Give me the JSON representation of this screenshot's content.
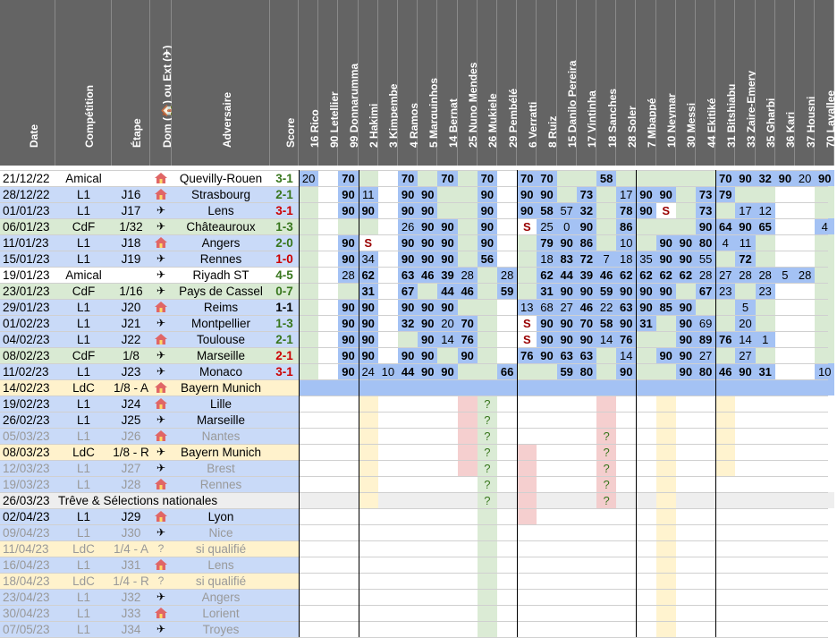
{
  "headers": {
    "date": "Date",
    "competition": "Compétition",
    "stage": "Étape",
    "home_away": "Dom (🏠) ou Ext (✈)",
    "opponent": "Adversaire",
    "score": "Score"
  },
  "players": [
    {
      "num": "16",
      "name": "Rico"
    },
    {
      "num": "90",
      "name": "Letellier"
    },
    {
      "num": "99",
      "name": "Donnarumma"
    },
    {
      "num": "2",
      "name": "Hakimi"
    },
    {
      "num": "3",
      "name": "Kimpembe"
    },
    {
      "num": "4",
      "name": "Ramos"
    },
    {
      "num": "5",
      "name": "Marquinhos"
    },
    {
      "num": "14",
      "name": "Bernat"
    },
    {
      "num": "25",
      "name": "Nuno Mendes"
    },
    {
      "num": "26",
      "name": "Mukiele"
    },
    {
      "num": "29",
      "name": "Pembélé"
    },
    {
      "num": "6",
      "name": "Verratti"
    },
    {
      "num": "8",
      "name": "Ruiz"
    },
    {
      "num": "15",
      "name": "Danilo Pereira"
    },
    {
      "num": "17",
      "name": "Vintinha"
    },
    {
      "num": "18",
      "name": "Sanches"
    },
    {
      "num": "28",
      "name": "Soler"
    },
    {
      "num": "7",
      "name": "Mbappé"
    },
    {
      "num": "10",
      "name": "Neymar"
    },
    {
      "num": "30",
      "name": "Messi"
    },
    {
      "num": "44",
      "name": "Ekitiké"
    },
    {
      "num": "31",
      "name": "Bitshiabu"
    },
    {
      "num": "33",
      "name": "Zaire-Emery"
    },
    {
      "num": "35",
      "name": "Gharbi"
    },
    {
      "num": "36",
      "name": "Kari"
    },
    {
      "num": "37",
      "name": "Housni"
    },
    {
      "num": "70",
      "name": "Lavallee"
    }
  ],
  "colors": {
    "header_bg": "#646464",
    "amical": "#ffffff",
    "l1": "#c9daf8",
    "cdf": "#d9ead3",
    "ldc": "#fff2cc",
    "break": "#eeeeee",
    "played": "#a4c2f4",
    "available": "#d9ead3",
    "absent_bg": "#ffffff",
    "suspended_bg": "#f4cccc",
    "doubt_bg": "#fff2cc",
    "score_win": "#38761d",
    "score_loss": "#cc0000",
    "score_draw": "#000000",
    "yellow_text": "#ffff00",
    "green_text": "#38761d",
    "red_text": "#990000",
    "purple_text": "#9900ff",
    "dim_text": "#999999"
  },
  "matches": [
    {
      "date": "21/12/22",
      "comp": "Amical",
      "stage": "",
      "loc": "home",
      "opp": "Quevilly-Rouen",
      "score": "3-1",
      "res": "W",
      "cells": [
        "20",
        "",
        "70",
        "",
        "",
        "70",
        "",
        "70",
        "",
        "70",
        "",
        "70",
        "70",
        "",
        "",
        "58",
        "",
        "",
        "",
        "",
        "",
        "70",
        "90",
        "32",
        "90",
        "20",
        "90"
      ]
    },
    {
      "date": "28/12/22",
      "comp": "L1",
      "stage": "J16",
      "loc": "home",
      "opp": "Strasbourg",
      "score": "2-1",
      "res": "W",
      "cells": [
        "",
        "",
        "90",
        "11",
        "",
        "90",
        "90",
        "",
        "",
        "90",
        "",
        "90",
        "90",
        "",
        "73",
        "",
        "17",
        "90",
        "90",
        "",
        "73",
        "79",
        "",
        "",
        "",
        "",
        ""
      ]
    },
    {
      "date": "01/01/23",
      "comp": "L1",
      "stage": "J17",
      "loc": "away",
      "opp": "Lens",
      "score": "3-1",
      "res": "L",
      "cells": [
        "",
        "",
        "90",
        "90",
        "",
        "90",
        "90",
        "",
        "",
        "90",
        "",
        "90",
        "58",
        "57",
        "32",
        "",
        "78",
        "90",
        "S",
        "",
        "73",
        "",
        "17",
        "12",
        "",
        "",
        ""
      ]
    },
    {
      "date": "06/01/23",
      "comp": "CdF",
      "stage": "1/32",
      "loc": "away",
      "opp": "Châteauroux",
      "score": "1-3",
      "res": "W",
      "cells": [
        "",
        "",
        "",
        "",
        "",
        "26",
        "90",
        "90",
        "",
        "90",
        "",
        "S",
        "25",
        "0",
        "90",
        "",
        "86",
        "",
        "",
        "",
        "90",
        "64",
        "90",
        "65",
        "",
        "",
        "4"
      ]
    },
    {
      "date": "11/01/23",
      "comp": "L1",
      "stage": "J18",
      "loc": "home",
      "opp": "Angers",
      "score": "2-0",
      "res": "W",
      "cells": [
        "",
        "",
        "90",
        "S",
        "",
        "90",
        "90",
        "90",
        "",
        "90",
        "",
        "",
        "79",
        "90",
        "86",
        "",
        "10",
        "",
        "90",
        "90",
        "80",
        "4",
        "11",
        "",
        "",
        "",
        ""
      ]
    },
    {
      "date": "15/01/23",
      "comp": "L1",
      "stage": "J19",
      "loc": "away",
      "opp": "Rennes",
      "score": "1-0",
      "res": "L",
      "cells": [
        "",
        "",
        "90",
        "34",
        "",
        "90",
        "90",
        "90",
        "",
        "56",
        "",
        "",
        "18",
        "83",
        "72",
        "7",
        "18",
        "35",
        "90",
        "90",
        "55",
        "",
        "72",
        "",
        "",
        "",
        ""
      ]
    },
    {
      "date": "19/01/23",
      "comp": "Amical",
      "stage": "",
      "loc": "away",
      "opp": "Riyadh ST",
      "score": "4-5",
      "res": "W",
      "cells": [
        "",
        "",
        "28",
        "62",
        "",
        "63",
        "46",
        "39",
        "28",
        "",
        "28",
        "",
        "62",
        "44",
        "39",
        "46",
        "62",
        "62",
        "62",
        "62",
        "28",
        "27",
        "28",
        "28",
        "5",
        "28",
        ""
      ]
    },
    {
      "date": "23/01/23",
      "comp": "CdF",
      "stage": "1/16",
      "loc": "away",
      "opp": "Pays de Cassel",
      "score": "0-7",
      "res": "W",
      "cells": [
        "",
        "",
        "",
        "31",
        "",
        "67",
        "",
        "44",
        "46",
        "",
        "59",
        "",
        "31",
        "90",
        "90",
        "59",
        "90",
        "90",
        "90",
        "",
        "67",
        "23",
        "",
        "23",
        "",
        "",
        ""
      ]
    },
    {
      "date": "29/01/23",
      "comp": "L1",
      "stage": "J20",
      "loc": "home",
      "opp": "Reims",
      "score": "1-1",
      "res": "D",
      "cells": [
        "",
        "",
        "90",
        "90",
        "",
        "90",
        "90",
        "90",
        "",
        "",
        "",
        "13",
        "68",
        "27",
        "46",
        "22",
        "63",
        "90",
        "85",
        "90",
        "",
        "",
        "5",
        "",
        "",
        "",
        ""
      ]
    },
    {
      "date": "01/02/23",
      "comp": "L1",
      "stage": "J21",
      "loc": "away",
      "opp": "Montpellier",
      "score": "1-3",
      "res": "W",
      "cells": [
        "",
        "",
        "90",
        "90",
        "",
        "32",
        "90",
        "20",
        "70",
        "",
        "",
        "S",
        "90",
        "90",
        "70",
        "58",
        "90",
        "31",
        "",
        "90",
        "69",
        "",
        "20",
        "",
        "",
        "",
        ""
      ]
    },
    {
      "date": "04/02/23",
      "comp": "L1",
      "stage": "J22",
      "loc": "home",
      "opp": "Toulouse",
      "score": "2-1",
      "res": "W",
      "cells": [
        "",
        "",
        "90",
        "90",
        "",
        "",
        "90",
        "14",
        "76",
        "",
        "",
        "S",
        "90",
        "90",
        "90",
        "14",
        "76",
        "",
        "",
        "90",
        "89",
        "76",
        "14",
        "1",
        "",
        "",
        ""
      ]
    },
    {
      "date": "08/02/23",
      "comp": "CdF",
      "stage": "1/8",
      "loc": "away",
      "opp": "Marseille",
      "score": "2-1",
      "res": "L",
      "cells": [
        "",
        "",
        "90",
        "90",
        "",
        "90",
        "90",
        "",
        "90",
        "",
        "",
        "76",
        "90",
        "63",
        "63",
        "",
        "14",
        "",
        "90",
        "90",
        "27",
        "",
        "27",
        "",
        "",
        "",
        ""
      ]
    },
    {
      "date": "11/02/23",
      "comp": "L1",
      "stage": "J23",
      "loc": "away",
      "opp": "Monaco",
      "score": "3-1",
      "res": "L",
      "cells": [
        "",
        "",
        "90",
        "24",
        "10",
        "44",
        "90",
        "90",
        "",
        "",
        "66",
        "",
        "",
        "59",
        "80",
        "",
        "90",
        "",
        "",
        "90",
        "80",
        "46",
        "90",
        "31",
        "",
        "",
        "10"
      ]
    },
    {
      "date": "14/02/23",
      "comp": "LdC",
      "stage": "1/8 - A",
      "loc": "home",
      "opp": "Bayern Munich",
      "score": "",
      "res": "",
      "cells": [
        "",
        "",
        "",
        "",
        "",
        "",
        "",
        "",
        "",
        "",
        "",
        "",
        "",
        "",
        "",
        "",
        "",
        "",
        "",
        "",
        "",
        "",
        "",
        "",
        "",
        "",
        ""
      ]
    },
    {
      "date": "19/02/23",
      "comp": "L1",
      "stage": "J24",
      "loc": "home",
      "opp": "Lille",
      "score": "",
      "res": "",
      "cells": [
        "",
        "",
        "",
        "",
        "",
        "",
        "",
        "",
        "",
        "?",
        "",
        "",
        "",
        "",
        "",
        "",
        "",
        "",
        "",
        "",
        "",
        "",
        "",
        "",
        "",
        "",
        ""
      ]
    },
    {
      "date": "26/02/23",
      "comp": "L1",
      "stage": "J25",
      "loc": "away",
      "opp": "Marseille",
      "score": "",
      "res": "",
      "cells": [
        "",
        "",
        "",
        "",
        "",
        "",
        "",
        "",
        "",
        "?",
        "",
        "",
        "",
        "",
        "",
        "",
        "",
        "",
        "",
        "",
        "",
        "",
        "",
        "",
        "",
        "",
        ""
      ]
    },
    {
      "date": "05/03/23",
      "comp": "L1",
      "stage": "J26",
      "loc": "home",
      "opp": "Nantes",
      "score": "",
      "res": "",
      "cells": [
        "",
        "",
        "",
        "",
        "",
        "",
        "",
        "",
        "",
        "?",
        "",
        "",
        "",
        "",
        "",
        "?",
        "",
        "",
        "",
        "",
        "",
        "",
        "",
        "",
        "",
        "",
        ""
      ]
    },
    {
      "date": "08/03/23",
      "comp": "LdC",
      "stage": "1/8 - R",
      "loc": "away",
      "opp": "Bayern Munich",
      "score": "",
      "res": "",
      "cells": [
        "",
        "",
        "",
        "",
        "",
        "",
        "",
        "",
        "",
        "?",
        "",
        "",
        "",
        "",
        "",
        "?",
        "",
        "",
        "",
        "",
        "",
        "",
        "",
        "",
        "",
        "",
        ""
      ]
    },
    {
      "date": "12/03/23",
      "comp": "L1",
      "stage": "J27",
      "loc": "away",
      "opp": "Brest",
      "score": "",
      "res": "",
      "cells": [
        "",
        "",
        "",
        "",
        "",
        "",
        "",
        "",
        "",
        "?",
        "",
        "",
        "",
        "",
        "",
        "?",
        "",
        "",
        "",
        "",
        "",
        "",
        "",
        "",
        "",
        "",
        ""
      ]
    },
    {
      "date": "19/03/23",
      "comp": "L1",
      "stage": "J28",
      "loc": "home",
      "opp": "Rennes",
      "score": "",
      "res": "",
      "cells": [
        "",
        "",
        "",
        "",
        "",
        "",
        "",
        "",
        "",
        "?",
        "",
        "",
        "",
        "",
        "",
        "?",
        "",
        "",
        "",
        "",
        "",
        "",
        "",
        "",
        "",
        "",
        ""
      ]
    },
    {
      "date": "26/03/23",
      "comp": "break",
      "stage": "",
      "loc": "",
      "opp": "Trêve & Sélections nationales",
      "score": "",
      "res": "",
      "cells": [
        "",
        "",
        "",
        "",
        "",
        "",
        "",
        "",
        "",
        "?",
        "",
        "",
        "",
        "",
        "",
        "?",
        "",
        "",
        "",
        "",
        "",
        "",
        "",
        "",
        "",
        "",
        ""
      ]
    },
    {
      "date": "02/04/23",
      "comp": "L1",
      "stage": "J29",
      "loc": "home",
      "opp": "Lyon",
      "score": "",
      "res": "",
      "cells": [
        "",
        "",
        "",
        "",
        "",
        "",
        "",
        "",
        "",
        "",
        "",
        "",
        "",
        "",
        "",
        "",
        "",
        "",
        "",
        "",
        "",
        "",
        "",
        "",
        "",
        "",
        ""
      ]
    },
    {
      "date": "09/04/23",
      "comp": "L1",
      "stage": "J30",
      "loc": "away",
      "opp": "Nice",
      "score": "",
      "res": "",
      "cells": [
        "",
        "",
        "",
        "",
        "",
        "",
        "",
        "",
        "",
        "",
        "",
        "",
        "",
        "",
        "",
        "",
        "",
        "",
        "",
        "",
        "",
        "",
        "",
        "",
        "",
        "",
        ""
      ]
    },
    {
      "date": "11/04/23",
      "comp": "LdC",
      "stage": "1/4 - A",
      "loc": "unknown",
      "opp": "si qualifié",
      "score": "",
      "res": "",
      "cells": [
        "",
        "",
        "",
        "",
        "",
        "",
        "",
        "",
        "",
        "",
        "",
        "",
        "",
        "",
        "",
        "",
        "",
        "",
        "",
        "",
        "",
        "",
        "",
        "",
        "",
        "",
        ""
      ]
    },
    {
      "date": "16/04/23",
      "comp": "L1",
      "stage": "J31",
      "loc": "home",
      "opp": "Lens",
      "score": "",
      "res": "",
      "cells": [
        "",
        "",
        "",
        "",
        "",
        "",
        "",
        "",
        "",
        "",
        "",
        "",
        "",
        "",
        "",
        "",
        "",
        "",
        "",
        "",
        "",
        "",
        "",
        "",
        "",
        "",
        ""
      ]
    },
    {
      "date": "18/04/23",
      "comp": "LdC",
      "stage": "1/4 - R",
      "loc": "unknown",
      "opp": "si qualifié",
      "score": "",
      "res": "",
      "cells": [
        "",
        "",
        "",
        "",
        "",
        "",
        "",
        "",
        "",
        "",
        "",
        "",
        "",
        "",
        "",
        "",
        "",
        "",
        "",
        "",
        "",
        "",
        "",
        "",
        "",
        "",
        ""
      ]
    },
    {
      "date": "23/04/23",
      "comp": "L1",
      "stage": "J32",
      "loc": "away",
      "opp": "Angers",
      "score": "",
      "res": "",
      "cells": [
        "",
        "",
        "",
        "",
        "",
        "",
        "",
        "",
        "",
        "",
        "",
        "",
        "",
        "",
        "",
        "",
        "",
        "",
        "",
        "",
        "",
        "",
        "",
        "",
        "",
        "",
        ""
      ]
    },
    {
      "date": "30/04/23",
      "comp": "L1",
      "stage": "J33",
      "loc": "home",
      "opp": "Lorient",
      "score": "",
      "res": "",
      "cells": [
        "",
        "",
        "",
        "",
        "",
        "",
        "",
        "",
        "",
        "",
        "",
        "",
        "",
        "",
        "",
        "",
        "",
        "",
        "",
        "",
        "",
        "",
        "",
        "",
        "",
        "",
        ""
      ]
    },
    {
      "date": "07/05/23",
      "comp": "L1",
      "stage": "J34",
      "loc": "away",
      "opp": "Troyes",
      "score": "",
      "res": "",
      "cells": [
        "",
        "",
        "",
        "",
        "",
        "",
        "",
        "",
        "",
        "",
        "",
        "",
        "",
        "",
        "",
        "",
        "",
        "",
        "",
        "",
        "",
        "",
        "",
        "",
        "",
        "",
        ""
      ]
    }
  ]
}
